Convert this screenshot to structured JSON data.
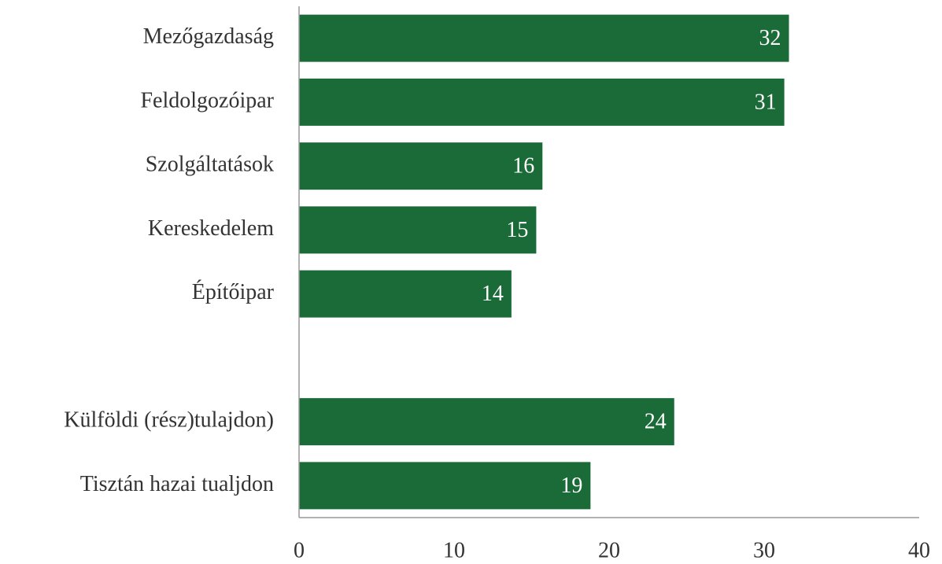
{
  "chart_data": {
    "type": "bar",
    "orientation": "horizontal",
    "categories": [
      "Mezőgazdaság",
      "Feldolgozóipar",
      "Szolgáltatások",
      "Kereskedelem",
      "Építőipar",
      null,
      "Külföldi (rész)tulajdon)",
      "Tisztán hazai tualjdon"
    ],
    "values": [
      31.6,
      31.3,
      15.7,
      15.3,
      13.7,
      null,
      24.2,
      18.8
    ],
    "value_labels": [
      "32",
      "31",
      "16",
      "15",
      "14",
      null,
      "24",
      "19"
    ],
    "color": "#1a6b38",
    "xlim": [
      0,
      40
    ],
    "xticks": [
      0,
      10,
      20,
      30,
      40
    ],
    "grid": false
  }
}
